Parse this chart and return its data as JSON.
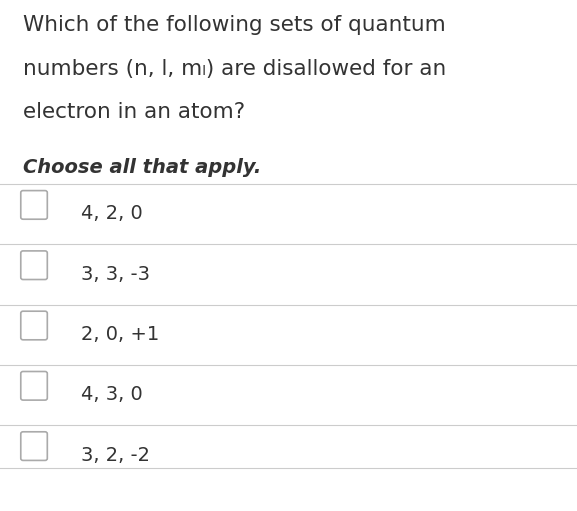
{
  "title_lines": [
    "Which of the following sets of quantum",
    "numbers (n, l, mₗ) are disallowed for an",
    "electron in an atom?"
  ],
  "subtitle": "Choose all that apply.",
  "options": [
    "4, 2, 0",
    "3, 3, -3",
    "2, 0, +1",
    "4, 3, 0",
    "3, 2, -2"
  ],
  "bg_color": "#ffffff",
  "text_color": "#333333",
  "line_color": "#cccccc",
  "title_fontsize": 15.5,
  "subtitle_fontsize": 14,
  "option_fontsize": 14,
  "checkbox_color": "#ffffff",
  "checkbox_edge_color": "#aaaaaa"
}
